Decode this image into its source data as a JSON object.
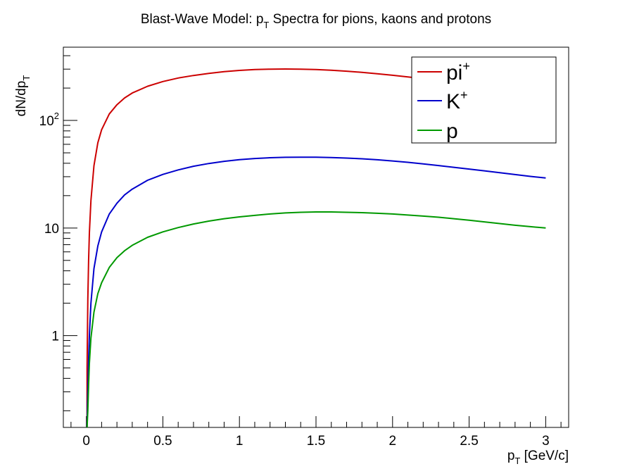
{
  "chart_data": {
    "type": "line",
    "title": {
      "main": "Blast-Wave Model: p",
      "sub": "T",
      "rest": " Spectra for pions, kaons and protons"
    },
    "xlabel": {
      "main": "p",
      "sub": "T",
      "rest": " [GeV/c]"
    },
    "ylabel": {
      "main": "dN/dp",
      "sub": "T"
    },
    "xlim": [
      -0.15,
      3.15
    ],
    "ylim": [
      0.14,
      480
    ],
    "yscale": "log",
    "grid": false,
    "legend_position": "top-right",
    "x_major_ticks": [
      0,
      0.5,
      1,
      1.5,
      2,
      2.5,
      3
    ],
    "x_tick_labels": [
      "0",
      "0.5",
      "1",
      "1.5",
      "2",
      "2.5",
      "3"
    ],
    "y_major_ticks": [
      1,
      10,
      100
    ],
    "y_tick_labels": [
      {
        "main": "1",
        "sup": ""
      },
      {
        "main": "10",
        "sup": ""
      },
      {
        "main": "10",
        "sup": "2"
      }
    ],
    "x": [
      0.005,
      0.01,
      0.015,
      0.02,
      0.03,
      0.05,
      0.075,
      0.1,
      0.15,
      0.2,
      0.25,
      0.3,
      0.4,
      0.5,
      0.6,
      0.7,
      0.8,
      0.9,
      1.0,
      1.1,
      1.2,
      1.3,
      1.4,
      1.5,
      1.6,
      1.7,
      1.8,
      1.9,
      2.0,
      2.1,
      2.2,
      2.3,
      2.4,
      2.5,
      2.6,
      2.7,
      2.8,
      2.9,
      3.0
    ],
    "series": [
      {
        "name": "pi",
        "name_sup": "+",
        "color": "#cc0000",
        "values": [
          0.5,
          2.2,
          5,
          9,
          18,
          38,
          62,
          82,
          115,
          140,
          162,
          180,
          208,
          230,
          248,
          262,
          274,
          284,
          292,
          297,
          300,
          301,
          300,
          297,
          293,
          287,
          280,
          272,
          263,
          254,
          245,
          236,
          228,
          220,
          213,
          206,
          200,
          195,
          190
        ]
      },
      {
        "name": "K",
        "name_sup": "+",
        "color": "#0000cc",
        "values": [
          0.15,
          0.3,
          0.6,
          1.0,
          2.0,
          4.2,
          6.8,
          9.2,
          13.5,
          17.0,
          20.3,
          23.0,
          27.8,
          31.5,
          34.7,
          37.5,
          39.8,
          41.7,
          43.2,
          44.3,
          45.0,
          45.4,
          45.6,
          45.5,
          45.2,
          44.7,
          44.0,
          43.1,
          42.0,
          40.8,
          39.5,
          38.1,
          36.7,
          35.3,
          34.0,
          32.7,
          31.4,
          30.2,
          29.2
        ]
      },
      {
        "name": "p",
        "name_sup": "",
        "color": "#009900",
        "values": [
          0.14,
          0.2,
          0.35,
          0.55,
          0.95,
          1.65,
          2.45,
          3.1,
          4.3,
          5.3,
          6.15,
          6.9,
          8.2,
          9.2,
          10.1,
          10.9,
          11.6,
          12.2,
          12.7,
          13.1,
          13.5,
          13.8,
          14.0,
          14.1,
          14.1,
          14.0,
          13.9,
          13.7,
          13.5,
          13.2,
          12.9,
          12.6,
          12.2,
          11.8,
          11.4,
          11.0,
          10.6,
          10.3,
          10.0
        ]
      }
    ]
  }
}
